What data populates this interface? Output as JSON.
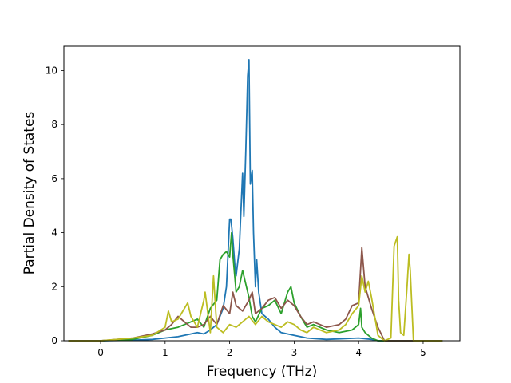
{
  "chart_data": {
    "type": "line",
    "title": "",
    "xlabel": "Frequency (THz)",
    "ylabel": "Partial Density of States",
    "xlim": [
      -0.57,
      5.57
    ],
    "ylim": [
      0,
      10.9
    ],
    "xticks": [
      0,
      1,
      2,
      3,
      4,
      5
    ],
    "yticks": [
      0,
      2,
      4,
      6,
      8,
      10
    ],
    "grid": false,
    "legend": "none",
    "series": [
      {
        "color": "#1f77b4",
        "x": [
          -0.5,
          0,
          0.5,
          0.8,
          1.0,
          1.2,
          1.4,
          1.5,
          1.6,
          1.7,
          1.8,
          1.9,
          1.95,
          2.0,
          2.02,
          2.05,
          2.08,
          2.1,
          2.15,
          2.2,
          2.22,
          2.25,
          2.28,
          2.3,
          2.32,
          2.35,
          2.37,
          2.4,
          2.42,
          2.45,
          2.5,
          2.6,
          2.7,
          2.8,
          3.0,
          3.2,
          3.5,
          4.0,
          4.2,
          4.3,
          5.3
        ],
        "values": [
          0,
          0,
          0.02,
          0.05,
          0.1,
          0.15,
          0.25,
          0.3,
          0.25,
          0.4,
          0.6,
          1.2,
          2.0,
          4.5,
          4.5,
          3.8,
          2.8,
          2.4,
          3.4,
          6.2,
          4.6,
          7.0,
          9.8,
          10.4,
          5.8,
          6.3,
          4.0,
          2.0,
          3.0,
          1.8,
          1.0,
          0.8,
          0.5,
          0.3,
          0.2,
          0.1,
          0.05,
          0.1,
          0.05,
          0,
          0
        ]
      },
      {
        "color": "#2ca02c",
        "x": [
          -0.5,
          0,
          0.5,
          0.8,
          1.0,
          1.2,
          1.3,
          1.5,
          1.6,
          1.7,
          1.8,
          1.85,
          1.9,
          1.95,
          2.0,
          2.03,
          2.05,
          2.1,
          2.15,
          2.2,
          2.25,
          2.3,
          2.35,
          2.4,
          2.5,
          2.6,
          2.7,
          2.8,
          2.9,
          2.95,
          3.0,
          3.1,
          3.2,
          3.3,
          3.5,
          3.7,
          3.9,
          4.0,
          4.03,
          4.05,
          4.1,
          4.2,
          4.3,
          5.3
        ],
        "values": [
          0,
          0,
          0.05,
          0.2,
          0.4,
          0.5,
          0.6,
          0.8,
          0.5,
          1.2,
          1.5,
          3.0,
          3.2,
          3.3,
          3.1,
          4.0,
          3.2,
          1.8,
          2.0,
          2.6,
          2.1,
          1.6,
          0.9,
          0.7,
          1.2,
          1.3,
          1.5,
          1.0,
          1.8,
          2.0,
          1.4,
          0.9,
          0.5,
          0.6,
          0.4,
          0.3,
          0.4,
          0.6,
          1.2,
          0.5,
          0.3,
          0.1,
          0,
          0
        ]
      },
      {
        "color": "#8c564b",
        "x": [
          -0.5,
          0,
          0.5,
          0.8,
          1.0,
          1.1,
          1.2,
          1.3,
          1.4,
          1.5,
          1.6,
          1.7,
          1.8,
          1.9,
          2.0,
          2.05,
          2.1,
          2.2,
          2.3,
          2.35,
          2.4,
          2.5,
          2.6,
          2.7,
          2.8,
          2.9,
          3.0,
          3.1,
          3.2,
          3.3,
          3.5,
          3.7,
          3.8,
          3.9,
          4.0,
          4.05,
          4.1,
          4.15,
          4.2,
          4.3,
          4.4,
          5.3
        ],
        "values": [
          0,
          0,
          0.1,
          0.25,
          0.4,
          0.6,
          0.9,
          0.7,
          0.5,
          0.5,
          0.6,
          0.9,
          0.6,
          1.3,
          1.0,
          1.8,
          1.3,
          1.1,
          1.5,
          1.8,
          1.0,
          1.2,
          1.5,
          1.6,
          1.2,
          1.5,
          1.3,
          0.9,
          0.6,
          0.7,
          0.5,
          0.6,
          0.8,
          1.3,
          1.4,
          3.45,
          2.0,
          1.6,
          1.2,
          0.5,
          0,
          0
        ]
      },
      {
        "color": "#bcbd22",
        "x": [
          -0.5,
          0,
          0.5,
          0.8,
          1.0,
          1.05,
          1.1,
          1.2,
          1.3,
          1.35,
          1.4,
          1.5,
          1.6,
          1.62,
          1.7,
          1.75,
          1.8,
          1.9,
          2.0,
          2.1,
          2.2,
          2.3,
          2.4,
          2.5,
          2.6,
          2.7,
          2.8,
          2.9,
          3.0,
          3.1,
          3.2,
          3.3,
          3.5,
          3.7,
          3.8,
          3.9,
          4.0,
          4.05,
          4.1,
          4.15,
          4.2,
          4.3,
          4.4,
          4.5,
          4.55,
          4.6,
          4.62,
          4.65,
          4.7,
          4.75,
          4.78,
          4.8,
          4.85,
          5.0,
          5.3
        ],
        "values": [
          0,
          0,
          0.1,
          0.2,
          0.5,
          1.1,
          0.7,
          0.8,
          1.2,
          1.4,
          0.9,
          0.5,
          1.5,
          1.8,
          0.3,
          2.4,
          0.5,
          0.3,
          0.6,
          0.5,
          0.7,
          0.9,
          0.6,
          0.9,
          0.7,
          0.6,
          0.5,
          0.7,
          0.6,
          0.4,
          0.3,
          0.5,
          0.3,
          0.4,
          0.6,
          1.0,
          1.3,
          2.4,
          1.8,
          2.2,
          1.6,
          0.2,
          0,
          0.1,
          3.5,
          3.85,
          1.5,
          0.3,
          0.2,
          2.0,
          3.2,
          2.6,
          0,
          0,
          0
        ]
      }
    ]
  }
}
